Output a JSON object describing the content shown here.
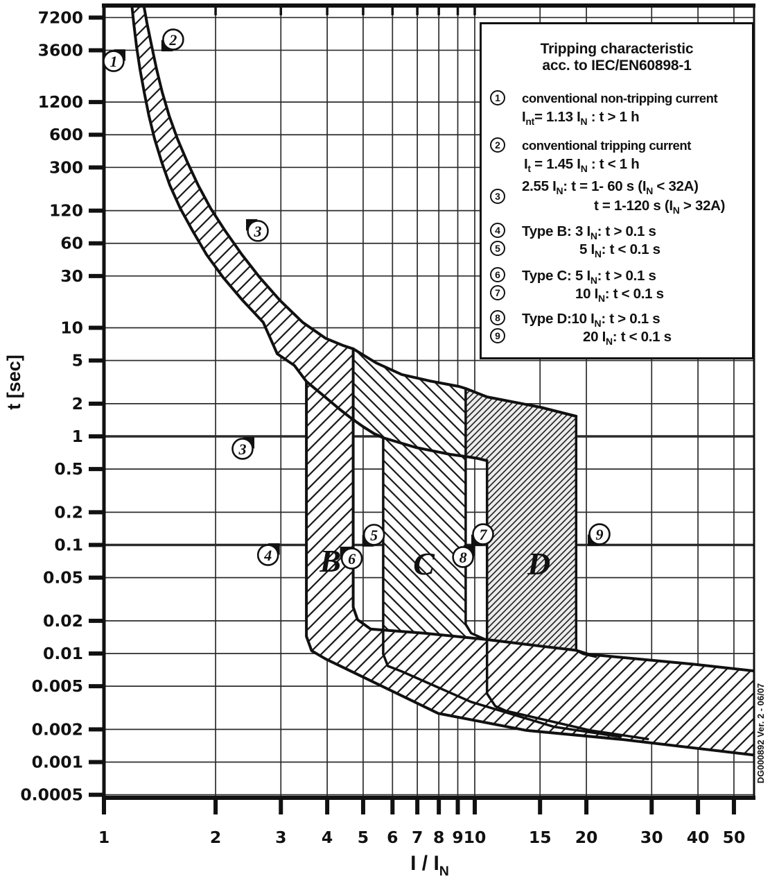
{
  "chart_data": {
    "type": "line",
    "title": "Tripping characteristic acc. to IEC/EN60898-1",
    "xlabel": "I / I_N_",
    "ylabel": "t [sec]",
    "x_scale": "log",
    "y_scale": "log",
    "xlim": [
      1,
      56.7
    ],
    "ylim": [
      0.00047,
      9700
    ],
    "grid": true,
    "x_ticks": [
      1,
      2,
      3,
      4,
      5,
      6,
      7,
      8,
      9,
      10,
      15,
      20,
      30,
      40,
      50
    ],
    "y_ticks": [
      7200,
      3600,
      1200,
      600,
      300,
      120,
      60,
      30,
      10,
      5,
      2,
      1,
      0.5,
      0.2,
      0.1,
      0.05,
      0.02,
      0.01,
      0.005,
      0.002,
      0.001,
      0.0005
    ],
    "y_ticks_bold_grid": [
      1,
      0.1
    ],
    "series": [
      {
        "name": "lower-thermal-boundary-1.13In",
        "width": 4,
        "points": [
          [
            1.188,
            9700
          ],
          [
            1.203,
            6430
          ],
          [
            1.224,
            3900
          ],
          [
            1.251,
            2400
          ],
          [
            1.284,
            1475
          ],
          [
            1.322,
            896
          ],
          [
            1.369,
            551
          ],
          [
            1.43,
            339
          ],
          [
            1.505,
            206
          ],
          [
            1.606,
            126
          ],
          [
            1.735,
            78
          ],
          [
            1.891,
            47.2
          ],
          [
            2.097,
            29
          ],
          [
            2.365,
            17.9
          ],
          [
            2.69,
            11.2
          ],
          [
            2.933,
            5.76
          ],
          [
            3.265,
            4.49
          ],
          [
            3.516,
            3.2
          ],
          [
            3.904,
            2.38
          ],
          [
            4.324,
            1.775
          ],
          [
            4.647,
            1.466
          ],
          [
            5.0,
            1.228
          ],
          [
            5.35,
            1.061
          ],
          [
            5.664,
            0.971
          ],
          [
            6.936,
            0.79
          ],
          [
            8.594,
            0.682
          ],
          [
            9.452,
            0.653
          ],
          [
            10.21,
            0.625
          ],
          [
            10.79,
            0.597
          ]
        ]
      },
      {
        "name": "upper-thermal-boundary-1.45In",
        "width": 4,
        "points": [
          [
            1.278,
            9700
          ],
          [
            1.306,
            6430
          ],
          [
            1.346,
            3900
          ],
          [
            1.387,
            2400
          ],
          [
            1.436,
            1475
          ],
          [
            1.499,
            896
          ],
          [
            1.578,
            551
          ],
          [
            1.676,
            339
          ],
          [
            1.795,
            206
          ],
          [
            1.939,
            126
          ],
          [
            2.124,
            78
          ],
          [
            2.355,
            47.2
          ],
          [
            2.632,
            29
          ],
          [
            2.983,
            17.9
          ],
          [
            3.437,
            11.2
          ],
          [
            3.963,
            8.0
          ],
          [
            4.415,
            6.87
          ],
          [
            4.7,
            6.4
          ],
          [
            5.42,
            4.75
          ],
          [
            6.36,
            3.71
          ],
          [
            7.56,
            3.24
          ],
          [
            9.08,
            2.88
          ],
          [
            9.452,
            2.76
          ],
          [
            10.79,
            2.31
          ],
          [
            15.03,
            1.856
          ],
          [
            18.77,
            1.532
          ]
        ]
      },
      {
        "name": "type-b-lower-3In-and-band-lower",
        "width": 4,
        "points": [
          [
            3.516,
            3.2
          ],
          [
            3.516,
            0.0144
          ],
          [
            3.63,
            0.0106
          ],
          [
            3.96,
            0.00891
          ],
          [
            7.97,
            0.00281
          ],
          [
            13.77,
            0.00196
          ],
          [
            25.2,
            0.00161
          ],
          [
            56.7,
            0.00116
          ]
        ]
      },
      {
        "name": "type-b-upper-5In-and-band-upper",
        "width": 4,
        "points": [
          [
            4.7,
            6.4
          ],
          [
            4.7,
            0.0268
          ],
          [
            4.83,
            0.0205
          ],
          [
            5.24,
            0.0168
          ],
          [
            7.32,
            0.0154
          ],
          [
            10.66,
            0.0135
          ],
          [
            15.03,
            0.0117
          ],
          [
            18.77,
            0.0107
          ],
          [
            20.3,
            0.00984
          ],
          [
            38.8,
            0.00797
          ],
          [
            56.7,
            0.00691
          ]
        ]
      },
      {
        "name": "type-c-lower-5In",
        "width": 3.5,
        "points": [
          [
            5.664,
            0.971
          ],
          [
            5.664,
            0.00988
          ],
          [
            5.83,
            0.00767
          ],
          [
            6.36,
            0.00683
          ],
          [
            9.78,
            0.00358
          ],
          [
            16.36,
            0.00211
          ],
          [
            24.7,
            0.00171
          ]
        ]
      },
      {
        "name": "type-c-upper-10In",
        "width": 3.5,
        "points": [
          [
            9.452,
            2.76
          ],
          [
            9.452,
            0.0186
          ],
          [
            9.78,
            0.0154
          ],
          [
            10.66,
            0.0135
          ]
        ]
      },
      {
        "name": "type-d-lower-10In",
        "width": 3.5,
        "points": [
          [
            10.79,
            0.597
          ],
          [
            10.79,
            0.00427
          ],
          [
            11.36,
            0.00328
          ],
          [
            12.14,
            0.00296
          ],
          [
            20.5,
            0.00196
          ],
          [
            29.3,
            0.00163
          ]
        ]
      },
      {
        "name": "type-d-upper-20In",
        "width": 3.5,
        "points": [
          [
            18.77,
            1.532
          ],
          [
            18.77,
            0.0107
          ],
          [
            19.6,
            0.00992
          ],
          [
            21.2,
            0.00935
          ]
        ]
      }
    ],
    "regions": [
      {
        "name": "thermal-and-type-b-band",
        "hatch": "light",
        "points": [
          [
            1.188,
            9700
          ],
          [
            1.203,
            6430
          ],
          [
            1.224,
            3900
          ],
          [
            1.251,
            2400
          ],
          [
            1.284,
            1475
          ],
          [
            1.322,
            896
          ],
          [
            1.369,
            551
          ],
          [
            1.43,
            339
          ],
          [
            1.505,
            206
          ],
          [
            1.606,
            126
          ],
          [
            1.735,
            78
          ],
          [
            1.891,
            47.2
          ],
          [
            2.097,
            29
          ],
          [
            2.365,
            17.9
          ],
          [
            2.69,
            11.2
          ],
          [
            2.933,
            5.76
          ],
          [
            3.265,
            4.49
          ],
          [
            3.516,
            3.2
          ],
          [
            3.516,
            0.0144
          ],
          [
            3.63,
            0.0106
          ],
          [
            3.96,
            0.00891
          ],
          [
            7.97,
            0.00281
          ],
          [
            13.77,
            0.00196
          ],
          [
            25.2,
            0.00161
          ],
          [
            56.7,
            0.00116
          ],
          [
            56.7,
            0.00691
          ],
          [
            38.8,
            0.00797
          ],
          [
            20.3,
            0.00984
          ],
          [
            18.77,
            0.0107
          ],
          [
            15.03,
            0.0117
          ],
          [
            10.66,
            0.0135
          ],
          [
            7.32,
            0.0154
          ],
          [
            5.24,
            0.0168
          ],
          [
            4.83,
            0.0205
          ],
          [
            4.7,
            0.0268
          ],
          [
            4.7,
            6.4
          ],
          [
            4.415,
            6.87
          ],
          [
            3.963,
            8.0
          ],
          [
            3.437,
            11.2
          ],
          [
            2.983,
            17.9
          ],
          [
            2.632,
            29
          ],
          [
            2.355,
            47.2
          ],
          [
            2.124,
            78
          ],
          [
            1.939,
            126
          ],
          [
            1.795,
            206
          ],
          [
            1.676,
            339
          ],
          [
            1.578,
            551
          ],
          [
            1.499,
            896
          ],
          [
            1.436,
            1475
          ],
          [
            1.387,
            2400
          ],
          [
            1.346,
            3900
          ],
          [
            1.306,
            6430
          ],
          [
            1.278,
            9700
          ]
        ]
      },
      {
        "name": "type-c-band",
        "hatch": "back",
        "points": [
          [
            4.7,
            6.4
          ],
          [
            5.42,
            4.75
          ],
          [
            6.36,
            3.71
          ],
          [
            7.56,
            3.24
          ],
          [
            9.08,
            2.88
          ],
          [
            9.452,
            2.76
          ],
          [
            9.452,
            0.0186
          ],
          [
            9.78,
            0.0154
          ],
          [
            10.66,
            0.0135
          ],
          [
            7.32,
            0.0154
          ],
          [
            5.9,
            0.0162
          ],
          [
            5.664,
            0.0166
          ],
          [
            5.664,
            0.971
          ],
          [
            5.35,
            1.061
          ],
          [
            5.0,
            1.228
          ],
          [
            4.7,
            1.4
          ]
        ]
      },
      {
        "name": "type-d-band",
        "hatch": "dense",
        "points": [
          [
            9.452,
            2.76
          ],
          [
            10.79,
            2.31
          ],
          [
            15.03,
            1.856
          ],
          [
            18.77,
            1.532
          ],
          [
            18.77,
            0.0107
          ],
          [
            15.03,
            0.0117
          ],
          [
            10.79,
            0.0136
          ],
          [
            10.79,
            0.597
          ],
          [
            10.21,
            0.625
          ],
          [
            9.452,
            0.653
          ]
        ]
      }
    ],
    "markers": [
      {
        "label": "1",
        "r": 1.062,
        "t": 2860,
        "flag": "tr"
      },
      {
        "label": "2",
        "r": 1.537,
        "t": 4520,
        "flag": "bl"
      },
      {
        "label": "3",
        "r": 2.6,
        "t": 78,
        "flag": "tl"
      },
      {
        "label": "3",
        "r": 2.365,
        "t": 0.768,
        "flag": "tr"
      },
      {
        "label": "4",
        "r": 2.77,
        "t": 0.0807,
        "flag": "tr"
      },
      {
        "label": "5",
        "r": 5.35,
        "t": 0.124,
        "flag": "bl"
      },
      {
        "label": "6",
        "r": 4.66,
        "t": 0.075,
        "flag": "tl"
      },
      {
        "label": "7",
        "r": 10.53,
        "t": 0.1255,
        "flag": "bl"
      },
      {
        "label": "8",
        "r": 9.3,
        "t": 0.0774,
        "flag": "tr"
      },
      {
        "label": "9",
        "r": 21.7,
        "t": 0.1255,
        "flag": "bl"
      }
    ],
    "band_labels": [
      {
        "text": "B",
        "r": 4.08,
        "t": 0.0718
      },
      {
        "text": "C",
        "r": 7.29,
        "t": 0.0677
      },
      {
        "text": "D",
        "r": 14.9,
        "t": 0.0677
      }
    ]
  },
  "legend": {
    "title_line1": "Tripping characteristic",
    "title_line2": "acc. to IEC/EN60898-1",
    "items": [
      {
        "num": "1",
        "label": "conventional non-tripping current",
        "formula": "I_nt_= 1.13 I_N_ : t > 1 h"
      },
      {
        "num": "2",
        "label": "conventional tripping current",
        "formula": "I_t_ = 1.45 I_N_ : t < 1 h"
      },
      {
        "num": "3",
        "formula1": "2.55 I_N_: t = 1- 60 s (I_N_ < 32A)",
        "formula2": "t = 1-120 s (I_N_ > 32A)"
      },
      {
        "num": "4",
        "formula": "Type B: 3 I_N_: t > 0.1 s"
      },
      {
        "num": "5",
        "formula": "5 I_N_: t < 0.1 s"
      },
      {
        "num": "6",
        "formula": "Type C: 5 I_N_: t > 0.1 s"
      },
      {
        "num": "7",
        "formula": "10 I_N_: t < 0.1 s"
      },
      {
        "num": "8",
        "formula": "Type D:10 I_N_: t > 0.1 s"
      },
      {
        "num": "9",
        "formula": "20 I_N_: t < 0.1 s"
      }
    ]
  },
  "axis": {
    "y_title": "t [sec]",
    "x_title": "I / I_N_"
  },
  "side_note": "DG000892 Ver. 2 - 06/07"
}
